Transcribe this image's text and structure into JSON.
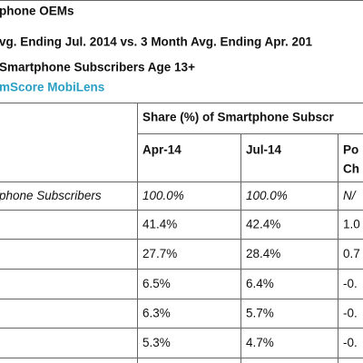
{
  "header": {
    "title": "phone OEMs",
    "subtitle": "vg. Ending Jul. 2014 vs. 3 Month Avg. Ending Apr. 201",
    "population": "Smartphone Subscribers Age 13+",
    "source": "mScore MobiLens"
  },
  "table": {
    "group_header": "Share (%) of Smartphone Subscr",
    "columns": [
      "Apr-14",
      "Jul-14",
      "Po"
    ],
    "column_extra": "Ch",
    "rows": [
      [
        "phone Subscribers",
        "100.0%",
        "100.0%",
        "N/"
      ],
      [
        null,
        "41.4%",
        "42.4%",
        "1.0"
      ],
      [
        null,
        "27.7%",
        "28.4%",
        "0.7"
      ],
      [
        null,
        "6.5%",
        "6.4%",
        "-0."
      ],
      [
        null,
        "6.3%",
        "5.7%",
        "-0."
      ],
      [
        null,
        "5.3%",
        "4.7%",
        "-0."
      ]
    ]
  }
}
